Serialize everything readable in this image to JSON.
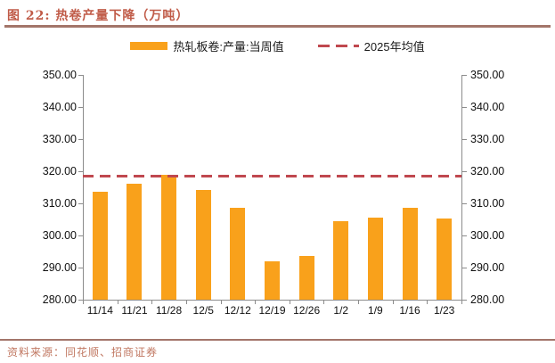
{
  "header": {
    "title": "图 22: 热卷产量下降（万吨）"
  },
  "legend": {
    "items": [
      {
        "label": "热轧板卷:产量:当周值",
        "marker": "bar-swatch",
        "color": "#f9a11b"
      },
      {
        "label": "2025年均值",
        "marker": "dashed-line",
        "color": "#c0484f"
      }
    ]
  },
  "footer": {
    "source": "资料来源：同花顺、招商证券"
  },
  "colors": {
    "bar": "#f9a11b",
    "dash": "#c0484f",
    "axis": "#8c8c8c",
    "title_text": "#c05b48",
    "rule": "#a3756a",
    "source_text": "#c17862"
  },
  "chart_data": {
    "type": "bar",
    "title": "热卷产量下降（万吨）",
    "categories": [
      "11/14",
      "11/21",
      "11/28",
      "12/5",
      "12/12",
      "12/19",
      "12/26",
      "1/2",
      "1/9",
      "1/16",
      "1/23"
    ],
    "series": [
      {
        "name": "热轧板卷:产量:当周值",
        "type": "bar",
        "color": "#f9a11b",
        "values": [
          313.5,
          316.2,
          318.9,
          314.3,
          308.7,
          292.0,
          293.5,
          304.4,
          305.5,
          308.5,
          305.4
        ]
      },
      {
        "name": "2025年均值",
        "type": "dashed-line",
        "color": "#c0484f",
        "constant_value": 318.7
      }
    ],
    "xlabel": "",
    "ylabel": "",
    "ylim": [
      280,
      350
    ],
    "ytick_step": 10,
    "ytick_format": "2-decimals",
    "yticks": [
      "280.00",
      "290.00",
      "300.00",
      "310.00",
      "320.00",
      "330.00",
      "340.00",
      "350.00"
    ],
    "dual_y_axis": true,
    "grid": false,
    "legend_position": "top-center"
  }
}
